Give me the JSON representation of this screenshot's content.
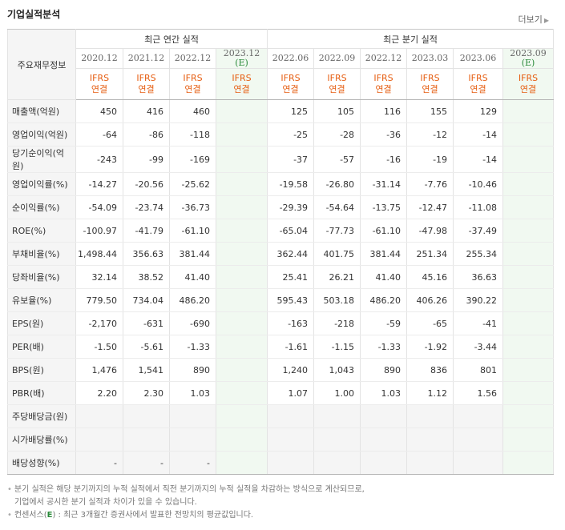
{
  "header": {
    "title": "기업실적분석",
    "more_label": "더보기"
  },
  "table": {
    "label_header": "주요재무정보",
    "annual_group": "최근 연간 실적",
    "quarter_group": "최근 분기 실적",
    "periods": [
      "2020.12",
      "2021.12",
      "2022.12",
      "2023.12",
      "2022.06",
      "2022.09",
      "2022.12",
      "2023.03",
      "2023.06",
      "2023.09"
    ],
    "estimate_mark": "(E)",
    "ifrs": "IFRS",
    "consolidated": "연결",
    "rows": [
      {
        "label": "매출액(억원)",
        "values": [
          "450",
          "416",
          "460",
          "",
          "125",
          "105",
          "116",
          "155",
          "129",
          ""
        ]
      },
      {
        "label": "영업이익(억원)",
        "values": [
          "-64",
          "-86",
          "-118",
          "",
          "-25",
          "-28",
          "-36",
          "-12",
          "-14",
          ""
        ]
      },
      {
        "label": "당기순이익(억원)",
        "values": [
          "-243",
          "-99",
          "-169",
          "",
          "-37",
          "-57",
          "-16",
          "-19",
          "-14",
          ""
        ]
      },
      {
        "label": "영업이익률(%)",
        "values": [
          "-14.27",
          "-20.56",
          "-25.62",
          "",
          "-19.58",
          "-26.80",
          "-31.14",
          "-7.76",
          "-10.46",
          ""
        ]
      },
      {
        "label": "순이익률(%)",
        "values": [
          "-54.09",
          "-23.74",
          "-36.73",
          "",
          "-29.39",
          "-54.64",
          "-13.75",
          "-12.47",
          "-11.08",
          ""
        ]
      },
      {
        "label": "ROE(%)",
        "values": [
          "-100.97",
          "-41.79",
          "-61.10",
          "",
          "-65.04",
          "-77.73",
          "-61.10",
          "-47.98",
          "-37.49",
          ""
        ]
      },
      {
        "label": "부채비율(%)",
        "values": [
          "1,498.44",
          "356.63",
          "381.44",
          "",
          "362.44",
          "401.75",
          "381.44",
          "251.34",
          "255.34",
          ""
        ]
      },
      {
        "label": "당좌비율(%)",
        "values": [
          "32.14",
          "38.52",
          "41.40",
          "",
          "25.41",
          "26.21",
          "41.40",
          "45.16",
          "36.63",
          ""
        ]
      },
      {
        "label": "유보율(%)",
        "values": [
          "779.50",
          "734.04",
          "486.20",
          "",
          "595.43",
          "503.18",
          "486.20",
          "406.26",
          "390.22",
          ""
        ]
      },
      {
        "label": "EPS(원)",
        "values": [
          "-2,170",
          "-631",
          "-690",
          "",
          "-163",
          "-218",
          "-59",
          "-65",
          "-41",
          ""
        ]
      },
      {
        "label": "PER(배)",
        "values": [
          "-1.50",
          "-5.61",
          "-1.33",
          "",
          "-1.61",
          "-1.15",
          "-1.33",
          "-1.92",
          "-3.44",
          ""
        ]
      },
      {
        "label": "BPS(원)",
        "values": [
          "1,476",
          "1,541",
          "890",
          "",
          "1,240",
          "1,043",
          "890",
          "836",
          "801",
          ""
        ]
      },
      {
        "label": "PBR(배)",
        "values": [
          "2.20",
          "2.30",
          "1.03",
          "",
          "1.07",
          "1.00",
          "1.03",
          "1.12",
          "1.56",
          ""
        ]
      },
      {
        "label": "주당배당금(원)",
        "values": [
          "",
          "",
          "",
          "",
          "",
          "",
          "",
          "",
          "",
          ""
        ]
      },
      {
        "label": "시가배당률(%)",
        "values": [
          "",
          "",
          "",
          "",
          "",
          "",
          "",
          "",
          "",
          ""
        ]
      },
      {
        "label": "배당성향(%)",
        "values": [
          "-",
          "-",
          "-",
          "",
          "",
          "",
          "",
          "",
          "",
          ""
        ]
      }
    ]
  },
  "notes": {
    "line1": "분기 실적은 해당 분기까지의 누적 실적에서 직전 분기까지의 누적 실적을 차감하는 방식으로 계산되므로,",
    "line2": "기업에서 공시한 분기 실적과 차이가 있을 수 있습니다.",
    "line3_prefix": "컨센서스(",
    "line3_mark": "E",
    "line3_suffix": ") : 최근 3개월간 증권사에서 발표한 전망치의 평균값입니다."
  },
  "colors": {
    "negative": "#e00000",
    "ifrs": "#e65e12",
    "estimate": "#2a8a3a"
  }
}
